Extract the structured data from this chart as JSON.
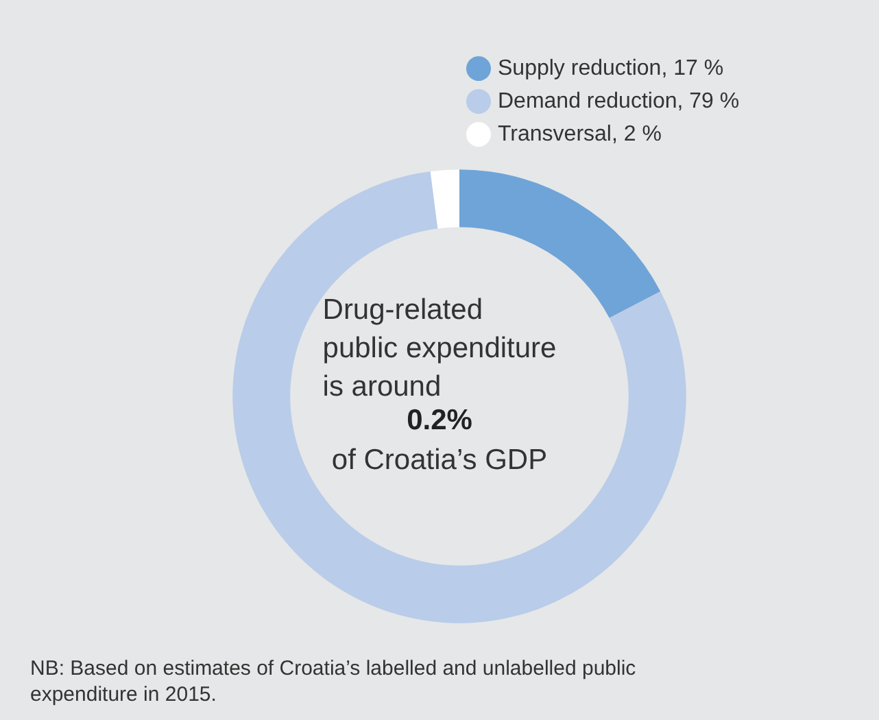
{
  "chart_data": {
    "type": "donut",
    "categories": [
      "Supply reduction, 17 %",
      "Demand reduction, 79 %",
      "Transversal, 2 %"
    ],
    "values": [
      17,
      79,
      2
    ],
    "colors": [
      "#6fa4d8",
      "#b9cce9",
      "#ffffff"
    ],
    "legend": "top right",
    "annotations": [
      "Drug-related\npublic expenditure\nis around",
      "0.2%",
      "of Croatia’s GDP",
      "NB: Based on estimates of Croatia’s labelled and unlabelled public\nexpenditure in 2015."
    ]
  }
}
